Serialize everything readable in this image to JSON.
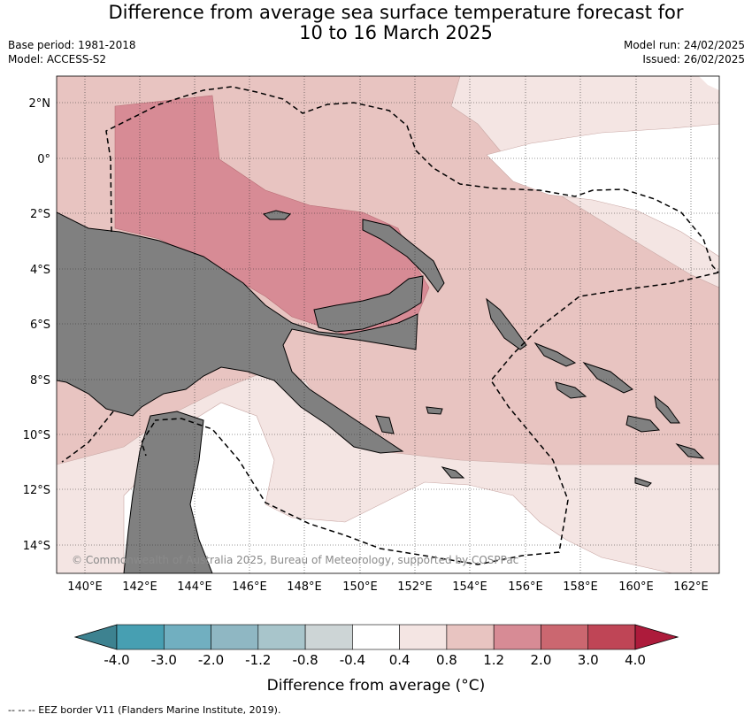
{
  "header": {
    "title_line1": "Difference from average sea surface temperature forecast for",
    "title_line2": "10 to 16 March 2025",
    "base_period": "Base period: 1981-2018",
    "model": "Model: ACCESS-S2",
    "model_run": "Model run: 24/02/2025",
    "issued": "Issued: 26/02/2025"
  },
  "map": {
    "lat_labels": [
      "2°N",
      "0°",
      "2°S",
      "4°S",
      "6°S",
      "8°S",
      "10°S",
      "12°S",
      "14°S"
    ],
    "lon_labels": [
      "140°E",
      "142°E",
      "144°E",
      "146°E",
      "148°E",
      "150°E",
      "152°E",
      "154°E",
      "156°E",
      "158°E",
      "160°E",
      "162°E"
    ],
    "copyright": "© Commonwealth of Australia 2025, Bureau of Meteorology, supported by COSPPac",
    "land_color": "#808080"
  },
  "colorbar": {
    "ticks": [
      "-4.0",
      "-3.0",
      "-2.0",
      "-1.2",
      "-0.8",
      "-0.4",
      "0.4",
      "0.8",
      "1.2",
      "2.0",
      "3.0",
      "4.0"
    ],
    "colors": [
      "#3d8290",
      "#479fb2",
      "#71afc0",
      "#8fb7c3",
      "#a8c5cb",
      "#cdd5d6",
      "#ffffff",
      "#f4e5e3",
      "#e8c4c1",
      "#d78b95",
      "#cb6770",
      "#bf4556",
      "#ad1b3b"
    ],
    "title": "Difference from average (°C)"
  },
  "footer": {
    "legend": "--  --  -- EEZ border V11 (Flanders Marine Institute, 2019)."
  }
}
